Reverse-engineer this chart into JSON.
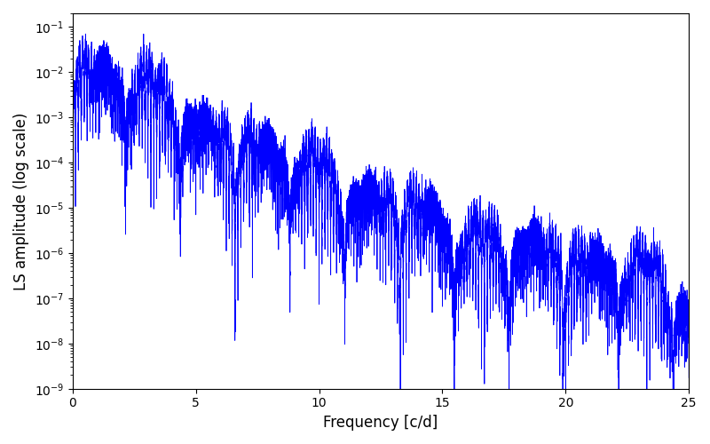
{
  "title": "",
  "xlabel": "Frequency [c/d]",
  "ylabel": "LS amplitude (log scale)",
  "line_color": "#0000ff",
  "linewidth": 0.6,
  "xlim": [
    0,
    25
  ],
  "ylim": [
    1e-09,
    0.2
  ],
  "freq_max": 25.0,
  "n_points": 20000,
  "background_color": "#ffffff",
  "figsize": [
    8.0,
    5.0
  ],
  "dpi": 100,
  "tick_labelsize": 10,
  "label_fontsize": 12
}
